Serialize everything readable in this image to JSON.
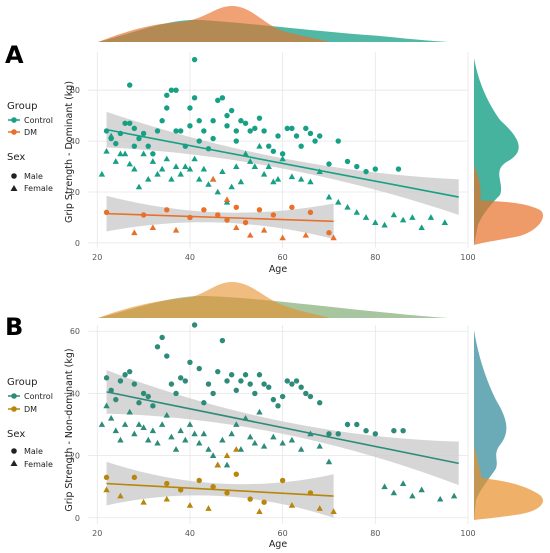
{
  "colors": {
    "control": "#16a085",
    "dm": "#e8702a",
    "control_b": "#2e8b7a",
    "dm_b": "#b8860b",
    "grid": "#e6e6e6",
    "ci": "#c8c8c8"
  },
  "legend": {
    "group_title": "Group",
    "group_items": [
      "Control",
      "DM"
    ],
    "sex_title": "Sex",
    "sex_items": [
      "Male",
      "Female"
    ]
  },
  "chart_data": [
    {
      "panel": "A",
      "type": "scatter",
      "xlabel": "Age",
      "ylabel": "Grip Strength - Dominant (kg)",
      "xlim": [
        18,
        100
      ],
      "ylim": [
        -2,
        75
      ],
      "xticks": [
        20,
        40,
        60,
        80,
        100
      ],
      "yticks": [
        0,
        20,
        40,
        60
      ],
      "grid": true,
      "series": [
        {
          "name": "Control",
          "trend": [
            [
              22,
              44.5
            ],
            [
              98,
              18
            ]
          ],
          "points_male": [
            [
              22,
              44
            ],
            [
              23,
              41
            ],
            [
              24,
              39
            ],
            [
              25,
              43
            ],
            [
              26,
              47
            ],
            [
              27,
              62
            ],
            [
              27,
              47
            ],
            [
              28,
              45
            ],
            [
              28,
              38
            ],
            [
              29,
              41
            ],
            [
              30,
              43
            ],
            [
              31,
              38
            ],
            [
              32,
              35
            ],
            [
              33,
              44
            ],
            [
              34,
              48
            ],
            [
              35,
              53
            ],
            [
              35,
              58
            ],
            [
              36,
              60
            ],
            [
              37,
              60
            ],
            [
              37,
              44
            ],
            [
              38,
              44
            ],
            [
              39,
              38
            ],
            [
              40,
              46
            ],
            [
              40,
              53
            ],
            [
              41,
              57
            ],
            [
              41,
              72
            ],
            [
              42,
              48
            ],
            [
              42,
              40
            ],
            [
              43,
              44
            ],
            [
              44,
              37
            ],
            [
              45,
              48
            ],
            [
              45,
              41
            ],
            [
              46,
              56
            ],
            [
              47,
              57
            ],
            [
              48,
              50
            ],
            [
              48,
              46
            ],
            [
              49,
              52
            ],
            [
              50,
              44
            ],
            [
              50,
              40
            ],
            [
              51,
              48
            ],
            [
              52,
              47
            ],
            [
              53,
              44
            ],
            [
              54,
              45
            ],
            [
              55,
              49
            ],
            [
              56,
              44
            ],
            [
              57,
              38
            ],
            [
              58,
              36
            ],
            [
              59,
              42
            ],
            [
              60,
              35
            ],
            [
              61,
              45
            ],
            [
              62,
              45
            ],
            [
              63,
              42
            ],
            [
              64,
              38
            ],
            [
              65,
              45
            ],
            [
              66,
              43
            ],
            [
              67,
              40
            ],
            [
              68,
              42
            ],
            [
              70,
              31
            ],
            [
              72,
              40
            ],
            [
              74,
              32
            ],
            [
              76,
              30
            ],
            [
              78,
              28
            ],
            [
              80,
              29
            ],
            [
              85,
              29
            ]
          ],
          "points_female": [
            [
              21,
              27
            ],
            [
              22,
              36
            ],
            [
              23,
              42
            ],
            [
              24,
              32
            ],
            [
              25,
              35
            ],
            [
              26,
              35
            ],
            [
              27,
              31
            ],
            [
              28,
              29
            ],
            [
              29,
              22
            ],
            [
              30,
              35
            ],
            [
              31,
              25
            ],
            [
              32,
              32
            ],
            [
              33,
              27
            ],
            [
              34,
              29
            ],
            [
              35,
              33
            ],
            [
              36,
              25
            ],
            [
              37,
              30
            ],
            [
              38,
              27
            ],
            [
              39,
              30
            ],
            [
              40,
              29
            ],
            [
              41,
              33
            ],
            [
              42,
              25
            ],
            [
              43,
              29
            ],
            [
              44,
              23
            ],
            [
              45,
              25
            ],
            [
              46,
              20
            ],
            [
              47,
              28
            ],
            [
              48,
              16
            ],
            [
              49,
              22
            ],
            [
              50,
              30
            ],
            [
              51,
              24
            ],
            [
              52,
              35
            ],
            [
              53,
              32
            ],
            [
              54,
              30
            ],
            [
              55,
              38
            ],
            [
              56,
              27
            ],
            [
              57,
              30
            ],
            [
              58,
              24
            ],
            [
              59,
              25
            ],
            [
              60,
              33
            ],
            [
              62,
              26
            ],
            [
              64,
              25
            ],
            [
              66,
              24
            ],
            [
              68,
              28
            ],
            [
              70,
              18
            ],
            [
              72,
              16
            ],
            [
              74,
              14
            ],
            [
              76,
              12
            ],
            [
              78,
              10
            ],
            [
              80,
              8
            ],
            [
              82,
              7
            ],
            [
              84,
              11
            ],
            [
              86,
              9
            ],
            [
              88,
              10
            ],
            [
              90,
              6
            ],
            [
              92,
              10
            ],
            [
              95,
              8
            ]
          ]
        },
        {
          "name": "DM",
          "trend": [
            [
              22,
              11.5
            ],
            [
              71,
              8.5
            ]
          ],
          "points_male": [
            [
              22,
              12
            ],
            [
              30,
              11
            ],
            [
              35,
              13
            ],
            [
              40,
              10
            ],
            [
              43,
              13
            ],
            [
              46,
              11
            ],
            [
              48,
              9
            ],
            [
              50,
              14
            ],
            [
              52,
              8
            ],
            [
              55,
              13
            ],
            [
              58,
              11
            ],
            [
              62,
              14
            ],
            [
              66,
              12
            ],
            [
              70,
              4
            ]
          ],
          "points_female": [
            [
              28,
              4
            ],
            [
              32,
              6
            ],
            [
              37,
              5
            ],
            [
              45,
              25
            ],
            [
              50,
              6
            ],
            [
              53,
              3
            ],
            [
              56,
              5
            ],
            [
              60,
              2
            ],
            [
              65,
              3
            ],
            [
              71,
              2
            ],
            [
              48,
              17
            ]
          ]
        }
      ]
    },
    {
      "panel": "B",
      "type": "scatter",
      "xlabel": "Age",
      "ylabel": "Grip Strength - Non-dominant (kg)",
      "xlim": [
        18,
        100
      ],
      "ylim": [
        -2,
        62
      ],
      "xticks": [
        20,
        40,
        60,
        80,
        100
      ],
      "yticks": [
        0,
        20,
        40,
        60
      ],
      "grid": true,
      "series": [
        {
          "name": "Control",
          "trend": [
            [
              22,
              40.5
            ],
            [
              98,
              17.5
            ]
          ],
          "points_male": [
            [
              22,
              45
            ],
            [
              23,
              41
            ],
            [
              24,
              38
            ],
            [
              25,
              44
            ],
            [
              26,
              46
            ],
            [
              27,
              47
            ],
            [
              28,
              43
            ],
            [
              29,
              37
            ],
            [
              30,
              40
            ],
            [
              31,
              39
            ],
            [
              32,
              36
            ],
            [
              33,
              55
            ],
            [
              34,
              58
            ],
            [
              35,
              52
            ],
            [
              36,
              43
            ],
            [
              37,
              40
            ],
            [
              38,
              45
            ],
            [
              39,
              44
            ],
            [
              40,
              50
            ],
            [
              41,
              62
            ],
            [
              42,
              48
            ],
            [
              43,
              37
            ],
            [
              44,
              43
            ],
            [
              45,
              40
            ],
            [
              46,
              47
            ],
            [
              47,
              57
            ],
            [
              48,
              44
            ],
            [
              49,
              46
            ],
            [
              50,
              41
            ],
            [
              51,
              44
            ],
            [
              52,
              46
            ],
            [
              53,
              43
            ],
            [
              54,
              40
            ],
            [
              55,
              46
            ],
            [
              56,
              43
            ],
            [
              57,
              42
            ],
            [
              58,
              38
            ],
            [
              59,
              36
            ],
            [
              60,
              39
            ],
            [
              61,
              44
            ],
            [
              62,
              43
            ],
            [
              63,
              44
            ],
            [
              64,
              42
            ],
            [
              65,
              40
            ],
            [
              66,
              39
            ],
            [
              68,
              37
            ],
            [
              70,
              27
            ],
            [
              72,
              27
            ],
            [
              74,
              30
            ],
            [
              76,
              30
            ],
            [
              78,
              28
            ],
            [
              80,
              27
            ],
            [
              84,
              28
            ],
            [
              86,
              28
            ]
          ],
          "points_female": [
            [
              21,
              30
            ],
            [
              22,
              36
            ],
            [
              23,
              32
            ],
            [
              24,
              28
            ],
            [
              25,
              25
            ],
            [
              26,
              30
            ],
            [
              27,
              34
            ],
            [
              28,
              27
            ],
            [
              29,
              30
            ],
            [
              30,
              29
            ],
            [
              31,
              25
            ],
            [
              32,
              28
            ],
            [
              33,
              24
            ],
            [
              34,
              30
            ],
            [
              35,
              33
            ],
            [
              36,
              26
            ],
            [
              37,
              22
            ],
            [
              38,
              28
            ],
            [
              39,
              25
            ],
            [
              40,
              30
            ],
            [
              41,
              27
            ],
            [
              42,
              24
            ],
            [
              43,
              27
            ],
            [
              44,
              22
            ],
            [
              45,
              20
            ],
            [
              46,
              17
            ],
            [
              47,
              25
            ],
            [
              48,
              17
            ],
            [
              49,
              27
            ],
            [
              50,
              30
            ],
            [
              51,
              22
            ],
            [
              52,
              32
            ],
            [
              53,
              26
            ],
            [
              54,
              24
            ],
            [
              55,
              34
            ],
            [
              56,
              23
            ],
            [
              58,
              26
            ],
            [
              60,
              24
            ],
            [
              62,
              25
            ],
            [
              64,
              22
            ],
            [
              66,
              27
            ],
            [
              68,
              23
            ],
            [
              70,
              18
            ],
            [
              82,
              10
            ],
            [
              84,
              8
            ],
            [
              86,
              11
            ],
            [
              88,
              7
            ],
            [
              90,
              9
            ],
            [
              94,
              6
            ],
            [
              97,
              7
            ]
          ]
        },
        {
          "name": "DM",
          "trend": [
            [
              22,
              11
            ],
            [
              71,
              7
            ]
          ],
          "points_male": [
            [
              22,
              13
            ],
            [
              28,
              13
            ],
            [
              35,
              11
            ],
            [
              38,
              9
            ],
            [
              42,
              12
            ],
            [
              45,
              10
            ],
            [
              48,
              8
            ],
            [
              50,
              14
            ],
            [
              53,
              6
            ],
            [
              56,
              5
            ],
            [
              60,
              12
            ],
            [
              66,
              8
            ]
          ],
          "points_female": [
            [
              22,
              9
            ],
            [
              25,
              7
            ],
            [
              30,
              5
            ],
            [
              35,
              6
            ],
            [
              40,
              4
            ],
            [
              44,
              3
            ],
            [
              46,
              17
            ],
            [
              48,
              20
            ],
            [
              50,
              22
            ],
            [
              55,
              2
            ],
            [
              62,
              4
            ],
            [
              68,
              3
            ],
            [
              71,
              2
            ]
          ]
        }
      ]
    }
  ]
}
